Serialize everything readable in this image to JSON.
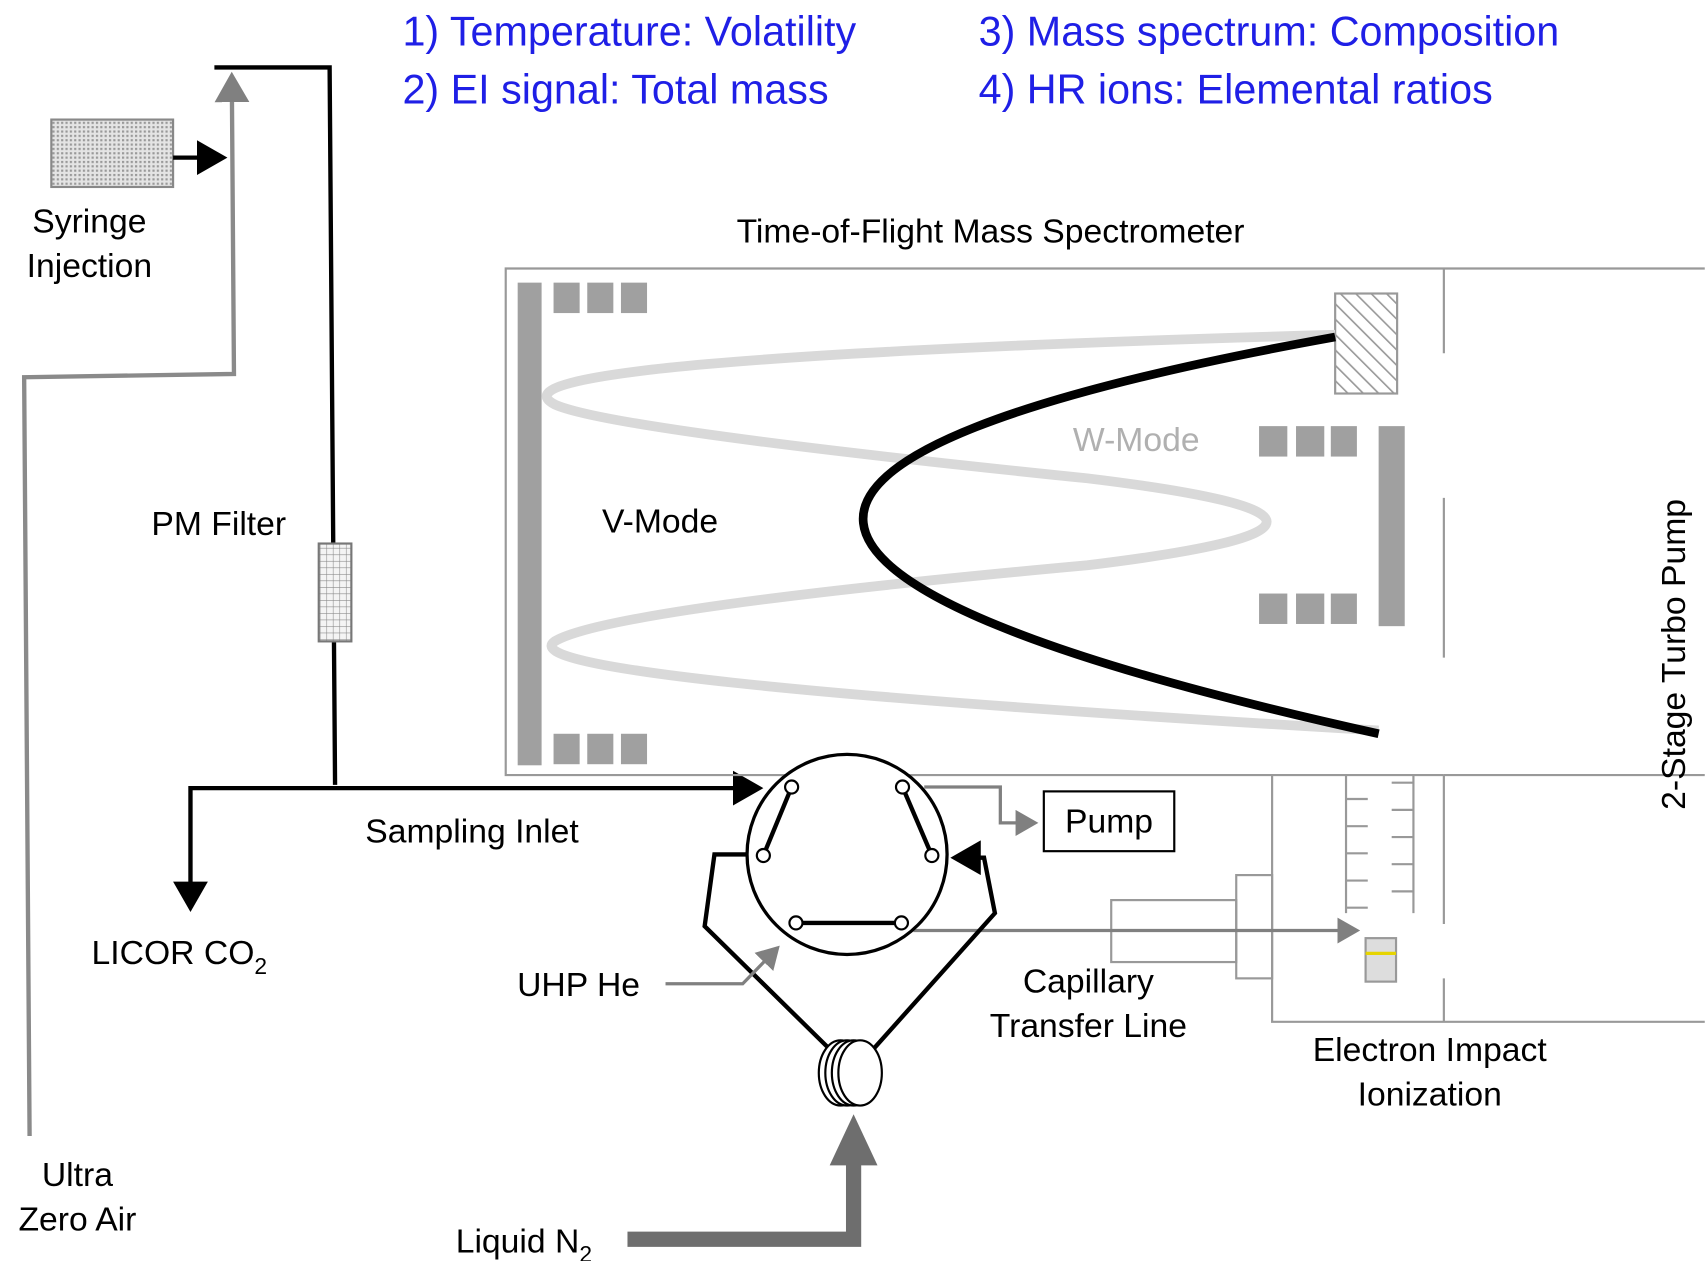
{
  "header": {
    "lines": [
      "1) Temperature: Volatility",
      "2) EI signal: Total mass",
      "3) Mass spectrum: Composition",
      "4) HR ions: Elemental ratios"
    ]
  },
  "labels": {
    "syringe_injection": [
      "Syringe",
      "Injection"
    ],
    "pm_filter": "PM Filter",
    "ultra_zero_air": [
      "Ultra",
      "Zero Air"
    ],
    "sampling_inlet": "Sampling Inlet",
    "licor": {
      "text": "LICOR CO",
      "subscript": "2"
    },
    "uhp_he": "UHP He",
    "liquid_n2": {
      "text": "Liquid N",
      "subscript": "2"
    },
    "pump": "Pump",
    "capillary": [
      "Capillary",
      "Transfer Line"
    ],
    "electron_impact": [
      "Electron Impact",
      "Ionization"
    ],
    "tof": "Time-of-Flight Mass Spectrometer",
    "w_mode": "W-Mode",
    "v_mode": "V-Mode",
    "turbo_pump": "2-Stage Turbo Pump"
  }
}
